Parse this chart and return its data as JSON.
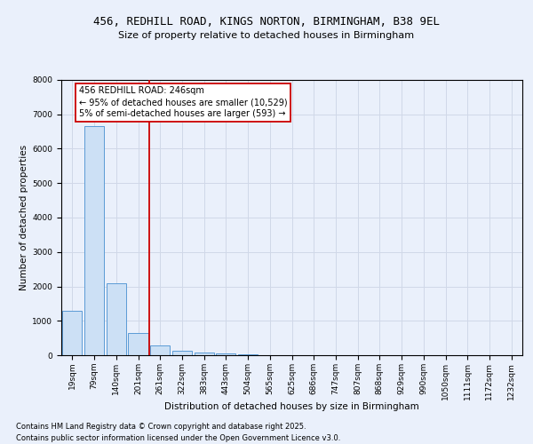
{
  "title_line1": "456, REDHILL ROAD, KINGS NORTON, BIRMINGHAM, B38 9EL",
  "title_line2": "Size of property relative to detached houses in Birmingham",
  "xlabel": "Distribution of detached houses by size in Birmingham",
  "ylabel": "Number of detached properties",
  "categories": [
    "19sqm",
    "79sqm",
    "140sqm",
    "201sqm",
    "261sqm",
    "322sqm",
    "383sqm",
    "443sqm",
    "504sqm",
    "565sqm",
    "625sqm",
    "686sqm",
    "747sqm",
    "807sqm",
    "868sqm",
    "929sqm",
    "990sqm",
    "1050sqm",
    "1111sqm",
    "1172sqm",
    "1232sqm"
  ],
  "values": [
    1300,
    6650,
    2100,
    650,
    280,
    130,
    80,
    40,
    15,
    5,
    3,
    2,
    1,
    0,
    0,
    0,
    0,
    0,
    0,
    0,
    0
  ],
  "bar_color": "#cce0f5",
  "bar_edge_color": "#5b9bd5",
  "grid_color": "#d0d8e8",
  "background_color": "#eaf0fb",
  "annotation_text": "456 REDHILL ROAD: 246sqm\n← 95% of detached houses are smaller (10,529)\n5% of semi-detached houses are larger (593) →",
  "annotation_box_facecolor": "#ffffff",
  "annotation_box_edgecolor": "#cc0000",
  "vline_x": 3.5,
  "vline_color": "#cc0000",
  "ylim": [
    0,
    8000
  ],
  "yticks": [
    0,
    1000,
    2000,
    3000,
    4000,
    5000,
    6000,
    7000,
    8000
  ],
  "footer_line1": "Contains HM Land Registry data © Crown copyright and database right 2025.",
  "footer_line2": "Contains public sector information licensed under the Open Government Licence v3.0.",
  "title_fontsize": 9,
  "subtitle_fontsize": 8,
  "axis_label_fontsize": 7.5,
  "tick_fontsize": 6.5,
  "annotation_fontsize": 7,
  "footer_fontsize": 6
}
